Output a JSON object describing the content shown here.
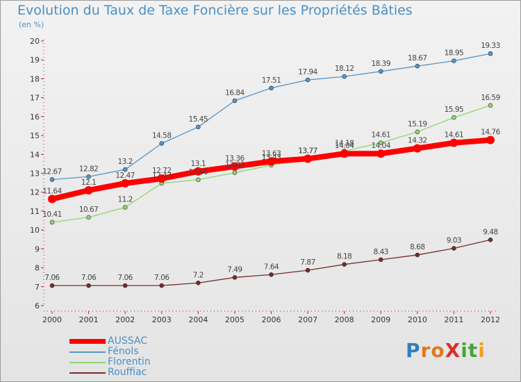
{
  "title": "Evolution du Taux de Taxe Foncière sur les Propriétés Bâties",
  "subtitle": "(en %)",
  "logo": {
    "text": "ProXiti",
    "letter_colors": [
      "#2f7fc0",
      "#e07a1f",
      "#e07a1f",
      "#d93030",
      "#4aa33a",
      "#4aa33a",
      "#f0a020"
    ]
  },
  "colors": {
    "axis": "#ff0000",
    "grid": "#c8c8c8",
    "text": "#333333"
  },
  "chart_data": {
    "type": "line",
    "title": "Evolution du Taux de Taxe Foncière sur les Propriétés Bâties",
    "subtitle": "(en %)",
    "x": [
      "2000",
      "2001",
      "2002",
      "2003",
      "2004",
      "2005",
      "2006",
      "2007",
      "2008",
      "2009",
      "2010",
      "2011",
      "2012"
    ],
    "ylim": [
      6,
      20
    ],
    "yticks": [
      "6",
      "7",
      "8",
      "9",
      "10",
      "11",
      "12",
      "13",
      "14",
      "15",
      "16",
      "17",
      "18",
      "19",
      "20"
    ],
    "grid": false,
    "legend_position": "bottom-left",
    "series": [
      {
        "name": "AUSSAC",
        "color": "#ff0000",
        "values": [
          11.64,
          12.1,
          12.47,
          12.72,
          13.1,
          13.36,
          13.63,
          13.77,
          14.04,
          14.04,
          14.32,
          14.61,
          14.76
        ],
        "labels": [
          "11.64",
          "12.1",
          "12.47",
          "12.72",
          "13.1",
          "13.36",
          "13.63",
          "13.77",
          "14.04",
          "14.04",
          "14.32",
          "14.61",
          "14.76"
        ]
      },
      {
        "name": "Fénols",
        "color": "#5596c9",
        "values": [
          12.67,
          12.82,
          13.2,
          14.58,
          15.45,
          16.84,
          17.51,
          17.94,
          18.12,
          18.39,
          18.67,
          18.95,
          19.33
        ],
        "labels": [
          "12.67",
          "12.82",
          "13.2",
          "14.58",
          "15.45",
          "16.84",
          "17.51",
          "17.94",
          "18.12",
          "18.39",
          "18.67",
          "18.95",
          "19.33"
        ]
      },
      {
        "name": "Florentin",
        "color": "#8fd66b",
        "values": [
          10.41,
          10.67,
          11.2,
          12.47,
          12.66,
          13.03,
          13.43,
          13.77,
          14.18,
          14.61,
          15.19,
          15.95,
          16.59
        ],
        "labels": [
          "10.41",
          "10.67",
          "11.2",
          "12.47",
          "12.66",
          "13.03",
          "13.43",
          "13.77",
          "14.18",
          "14.61",
          "15.19",
          "15.95",
          "16.59"
        ]
      },
      {
        "name": "Rouffiac",
        "color": "#7a2a2a",
        "values": [
          7.06,
          7.06,
          7.06,
          7.06,
          7.2,
          7.49,
          7.64,
          7.87,
          8.18,
          8.43,
          8.68,
          9.03,
          9.48
        ],
        "labels": [
          "7.06",
          "7.06",
          "7.06",
          "7.06",
          "7.2",
          "7.49",
          "7.64",
          "7.87",
          "8.18",
          "8.43",
          "8.68",
          "9.03",
          "9.48"
        ]
      }
    ]
  }
}
